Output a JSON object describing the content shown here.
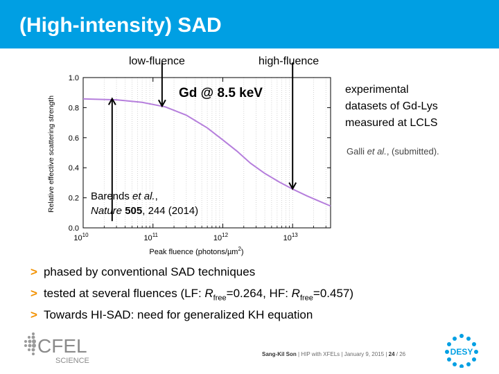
{
  "slide": {
    "title": "(High-intensity) SAD",
    "label_low": "low-fluence",
    "label_high": "high-fluence",
    "side_text": {
      "line1": "experimental",
      "line2": "datasets of Gd-Lys",
      "line3": "measured at LCLS"
    },
    "citation": {
      "author": "Galli ",
      "etal": "et al.",
      "rest": ", (submitted)."
    },
    "bullets": [
      {
        "text": "phased by conventional SAD techniques"
      },
      {
        "t1": "tested at several fluences (LF: ",
        "r1": "R",
        "s1": "free",
        "v1": "=0.264, HF: ",
        "r2": "R",
        "s2": "free",
        "v2": "=0.457)"
      },
      {
        "text": "Towards HI-SAD: need for generalized KH equation"
      }
    ],
    "bullet_mark": ">",
    "footer": {
      "author": "Sang-Kil Son",
      "sep": " | ",
      "talk": "HIP with XFELs",
      "date": "January 9, 2015",
      "page": "24",
      "total": " / 26"
    },
    "logo_left": {
      "main": "CFEL",
      "sub": "SCIENCE"
    },
    "logo_right": {
      "text": "DESY"
    }
  },
  "chart_data": {
    "type": "line",
    "annotation": "Gd @ 8.5 keV",
    "xlabel": "Peak fluence (photons/µm",
    "xlabel_sup": "2",
    "xlabel_end": ")",
    "ylabel": "Relative effective scattering strength",
    "xscale": "log",
    "xlim": [
      10000000000.0,
      35000000000000.0
    ],
    "ylim": [
      0,
      1.0
    ],
    "x_ticks": [
      {
        "base": "10",
        "exp": "10",
        "value": 10000000000.0
      },
      {
        "base": "10",
        "exp": "11",
        "value": 100000000000.0
      },
      {
        "base": "10",
        "exp": "12",
        "value": 1000000000000.0
      },
      {
        "base": "10",
        "exp": "13",
        "value": 10000000000000.0
      }
    ],
    "y_ticks": [
      {
        "label": "0.0",
        "value": 0.0
      },
      {
        "label": "0.2",
        "value": 0.2
      },
      {
        "label": "0.4",
        "value": 0.4
      },
      {
        "label": "0.6",
        "value": 0.6
      },
      {
        "label": "0.8",
        "value": 0.8
      },
      {
        "label": "1.0",
        "value": 1.0
      }
    ],
    "grid": "x-minor-dotted",
    "series": [
      {
        "color": "#b57edc",
        "x": [
          10000000000.0,
          30000000000.0,
          70000000000.0,
          150000000000.0,
          300000000000.0,
          600000000000.0,
          1000000000000.0,
          1600000000000.0,
          2500000000000.0,
          4000000000000.0,
          6500000000000.0,
          10000000000000.0,
          16000000000000.0,
          24000000000000.0,
          35000000000000.0
        ],
        "y": [
          0.858,
          0.852,
          0.835,
          0.805,
          0.75,
          0.665,
          0.585,
          0.51,
          0.43,
          0.362,
          0.304,
          0.258,
          0.213,
          0.178,
          0.145
        ]
      }
    ],
    "arrows": [
      {
        "x": 26000000000.0,
        "y_from": 0.045,
        "y_to": 0.86,
        "note_line1_a": "Barends ",
        "note_line1_b": "et al.",
        "note_line1_c": ",",
        "note_line2_a": "Nature",
        "note_line2_b": " 505",
        "note_line2_c": ", 244 (2014)"
      },
      {
        "x": 135000000000.0,
        "y_from": 1.1,
        "y_to": 0.81
      },
      {
        "x": 10000000000000.0,
        "y_from": 1.1,
        "y_to": 0.26
      }
    ]
  }
}
